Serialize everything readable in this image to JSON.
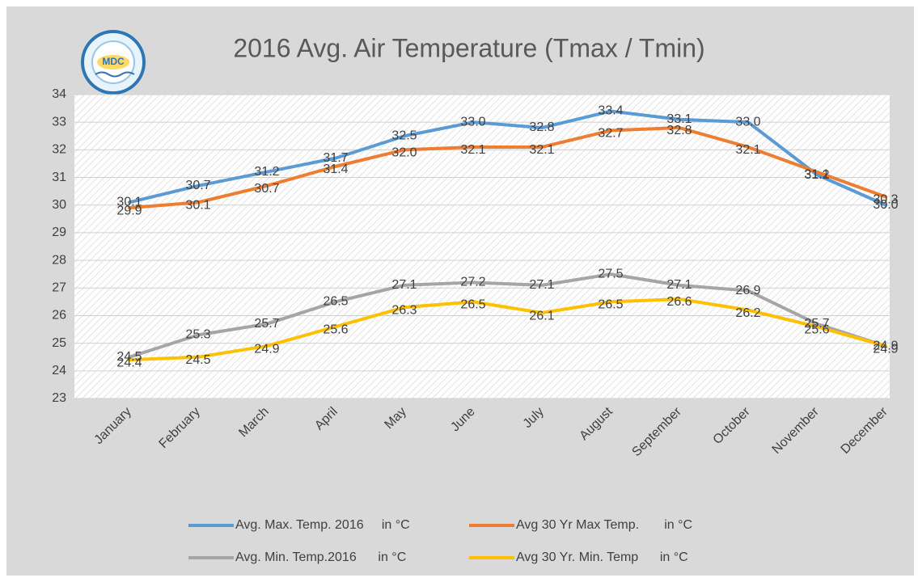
{
  "chart_data": {
    "type": "line",
    "title": "2016 Avg. Air Temperature (Tmax / Tmin)",
    "logo_text": "MDC",
    "categories": [
      "January",
      "February",
      "March",
      "April",
      "May",
      "June",
      "July",
      "August",
      "September",
      "October",
      "November",
      "December"
    ],
    "series": [
      {
        "name": "Avg. Max. Temp. 2016     in °C",
        "color": "#5b9bd5",
        "values": [
          30.1,
          30.7,
          31.2,
          31.7,
          32.5,
          33.0,
          32.8,
          33.4,
          33.1,
          33.0,
          31.1,
          30.0
        ],
        "value_labels": [
          "30.1",
          "30.7",
          "31.2",
          "31.7",
          "32.5",
          "33.0",
          "32.8",
          "33.4",
          "33.1",
          "33.0",
          "31.1",
          "30.0"
        ]
      },
      {
        "name": "Avg 30 Yr Max Temp.       in °C",
        "color": "#ed7d31",
        "values": [
          29.9,
          30.1,
          30.7,
          31.4,
          32.0,
          32.1,
          32.1,
          32.7,
          32.8,
          32.1,
          31.2,
          30.3
        ],
        "value_labels": [
          "29.9",
          "30.1",
          "30.7",
          "31.4",
          "32.0",
          "32.1",
          "32.1",
          "32.7",
          "32.8",
          "32.1",
          "31.2",
          "30.3"
        ]
      },
      {
        "name": "Avg. Min. Temp.2016      in °C",
        "color": "#a5a5a5",
        "values": [
          24.5,
          25.3,
          25.7,
          26.5,
          27.1,
          27.2,
          27.1,
          27.5,
          27.1,
          26.9,
          25.7,
          24.9
        ],
        "value_labels": [
          "24.5",
          "25.3",
          "25.7",
          "26.5",
          "27.1",
          "27.2",
          "27.1",
          "27.5",
          "27.1",
          "26.9",
          "25.7",
          "24.9"
        ]
      },
      {
        "name": "Avg 30 Yr. Min. Temp      in °C",
        "color": "#ffc000",
        "values": [
          24.4,
          24.5,
          24.9,
          25.6,
          26.3,
          26.5,
          26.1,
          26.5,
          26.6,
          26.2,
          25.6,
          24.9
        ],
        "value_labels": [
          "24.4",
          "24.5",
          "24.9",
          "25.6",
          "26.3",
          "26.5",
          "26.1",
          "26.5",
          "26.6",
          "26.2",
          "25.6",
          "24.9"
        ]
      }
    ],
    "ylim": [
      23,
      34
    ],
    "yticks": [
      23,
      24,
      25,
      26,
      27,
      28,
      29,
      30,
      31,
      32,
      33,
      34
    ],
    "grid": true
  }
}
